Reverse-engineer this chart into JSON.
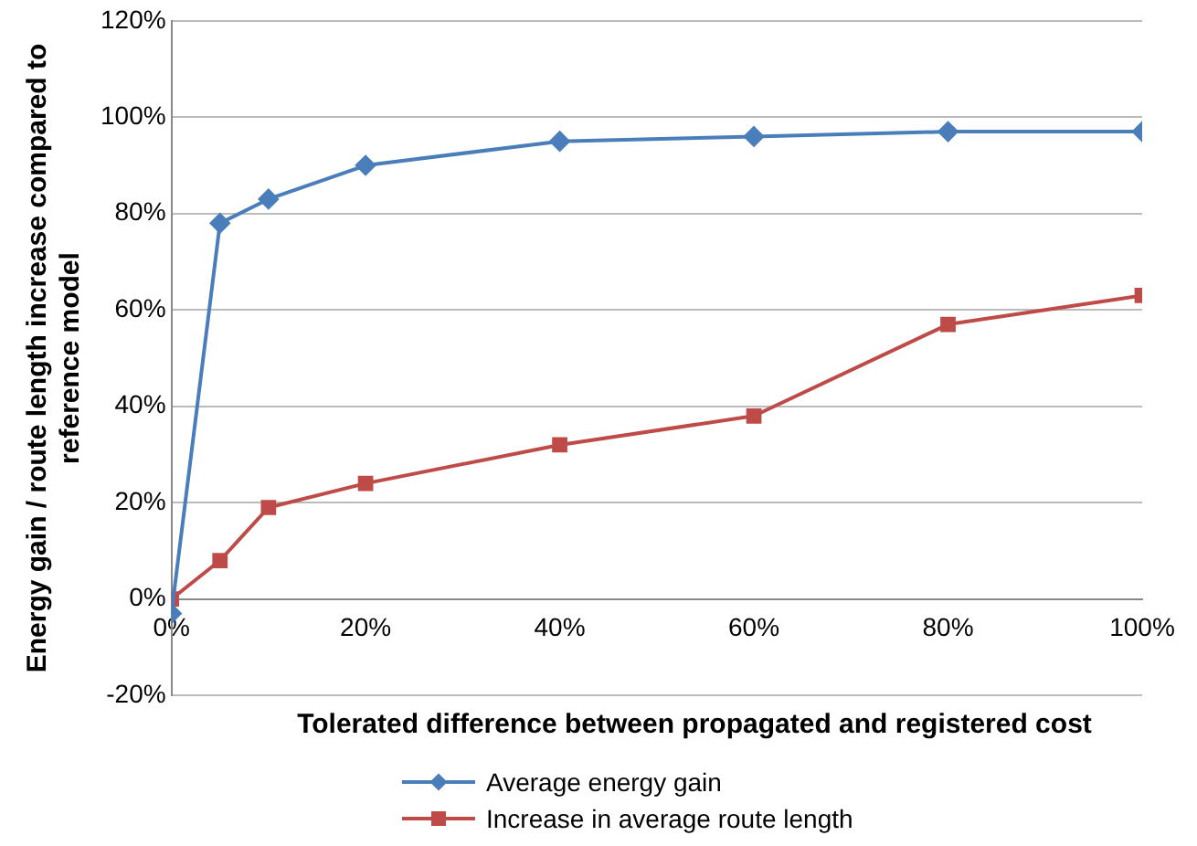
{
  "chart_data": {
    "type": "line",
    "xlabel": "Tolerated difference between propagated and registered cost",
    "ylabel": "Energy gain / route length increase compared to reference model",
    "x": [
      0,
      5,
      10,
      20,
      40,
      60,
      80,
      100
    ],
    "series": [
      {
        "name": "Average energy gain",
        "color": "#4a7ebb",
        "marker": "diamond",
        "values": [
          -3,
          78,
          83,
          90,
          95,
          96,
          97,
          97
        ]
      },
      {
        "name": "Increase in average route length",
        "color": "#be4b48",
        "marker": "square",
        "values": [
          0,
          8,
          19,
          24,
          32,
          38,
          57,
          63
        ]
      }
    ],
    "xlim": [
      0,
      100
    ],
    "xticks": [
      {
        "value": 0,
        "label": "0%"
      },
      {
        "value": 20,
        "label": "20%"
      },
      {
        "value": 40,
        "label": "40%"
      },
      {
        "value": 60,
        "label": "60%"
      },
      {
        "value": 80,
        "label": "80%"
      },
      {
        "value": 100,
        "label": "100%"
      }
    ],
    "ylim": [
      -20,
      120
    ],
    "yticks": [
      {
        "value": -20,
        "label": "-20%"
      },
      {
        "value": 0,
        "label": "0%"
      },
      {
        "value": 20,
        "label": "20%"
      },
      {
        "value": 40,
        "label": "40%"
      },
      {
        "value": 60,
        "label": "60%"
      },
      {
        "value": 80,
        "label": "80%"
      },
      {
        "value": 100,
        "label": "100%"
      },
      {
        "value": 120,
        "label": "120%"
      }
    ],
    "grid": "y",
    "legend": "bottom"
  }
}
